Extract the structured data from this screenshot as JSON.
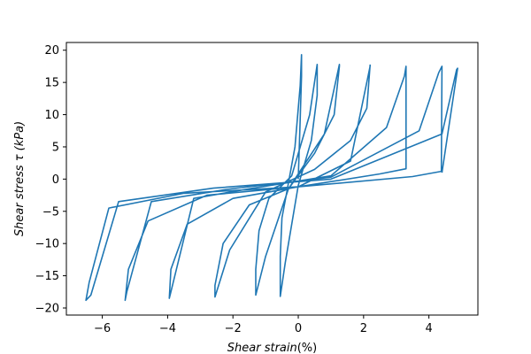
{
  "chart_data": {
    "type": "line",
    "title": "",
    "xlabel_italic": "Shear strain",
    "xlabel_unit": "(%)",
    "ylabel_italic": "Shear stress τ (kPa)",
    "xlim": [
      -7.1,
      5.5
    ],
    "ylim": [
      -21.1,
      21.2
    ],
    "xticks": [
      -6,
      -4,
      -2,
      0,
      2,
      4
    ],
    "xtick_labels": [
      "−6",
      "−4",
      "−2",
      "0",
      "2",
      "4"
    ],
    "yticks": [
      -20,
      -15,
      -10,
      -5,
      0,
      5,
      10,
      15,
      20
    ],
    "ytick_labels": [
      "−20",
      "−15",
      "−10",
      "−5",
      "0",
      "5",
      "10",
      "15",
      "20"
    ],
    "grid": false,
    "legend": "none",
    "color": "#1f77b4",
    "series": [
      {
        "x": [
          0.0,
          0.05,
          0.1,
          0.1,
          0.06,
          -0.1,
          -0.35,
          -0.5,
          -0.55,
          -0.55,
          -0.4,
          0.0,
          0.4,
          0.58,
          0.58,
          0.35,
          -0.2,
          -0.9,
          -1.2,
          -1.3,
          -1.3,
          -1.0,
          -0.3,
          0.5,
          1.1,
          1.26,
          1.26,
          0.8,
          -0.3,
          -1.5,
          -2.3,
          -2.55,
          -2.55,
          -2.1,
          -1.0,
          0.5,
          1.6,
          2.1,
          2.2,
          2.2,
          1.6,
          0.0,
          -2.0,
          -3.4,
          -3.9,
          -3.95,
          -3.9,
          -3.2,
          -1.5,
          1.0,
          2.7,
          3.25,
          3.3,
          3.3,
          2.5,
          0.0,
          -2.8,
          -4.6,
          -5.2,
          -5.3,
          -5.25,
          -4.5,
          -2.2,
          1.0,
          3.7,
          4.3,
          4.4,
          4.38,
          3.5,
          0.0,
          -3.5,
          -5.8,
          -6.4,
          -6.5,
          -6.35,
          -5.5,
          -2.6,
          1.0,
          4.4,
          4.85,
          4.88,
          4.4
        ],
        "y": [
          0.0,
          8.0,
          16.0,
          19.3,
          14.5,
          5.0,
          -2.0,
          -6.0,
          -12.0,
          -18.2,
          -13.0,
          -1.0,
          6.0,
          13.0,
          17.8,
          10.0,
          0.5,
          -3.0,
          -8.0,
          -14.0,
          -18.0,
          -12.0,
          -1.5,
          4.0,
          10.0,
          17.5,
          17.8,
          7.0,
          -1.5,
          -4.0,
          -10.0,
          -16.5,
          -18.3,
          -11.0,
          -2.0,
          1.5,
          6.0,
          11.0,
          17.7,
          17.5,
          2.8,
          -1.2,
          -3.0,
          -7.0,
          -14.0,
          -18.5,
          -17.5,
          -3.0,
          -1.5,
          0.5,
          8.0,
          16.0,
          17.5,
          1.6,
          0.8,
          -1.2,
          -2.5,
          -6.5,
          -14.0,
          -18.8,
          -17.5,
          -3.5,
          -1.6,
          0.3,
          7.5,
          16.5,
          17.5,
          1.2,
          0.4,
          -1.2,
          -2.2,
          -4.5,
          -16.0,
          -18.8,
          -18.0,
          -3.5,
          -1.4,
          0.0,
          7.0,
          17.0,
          17.2,
          1.0
        ]
      }
    ]
  }
}
